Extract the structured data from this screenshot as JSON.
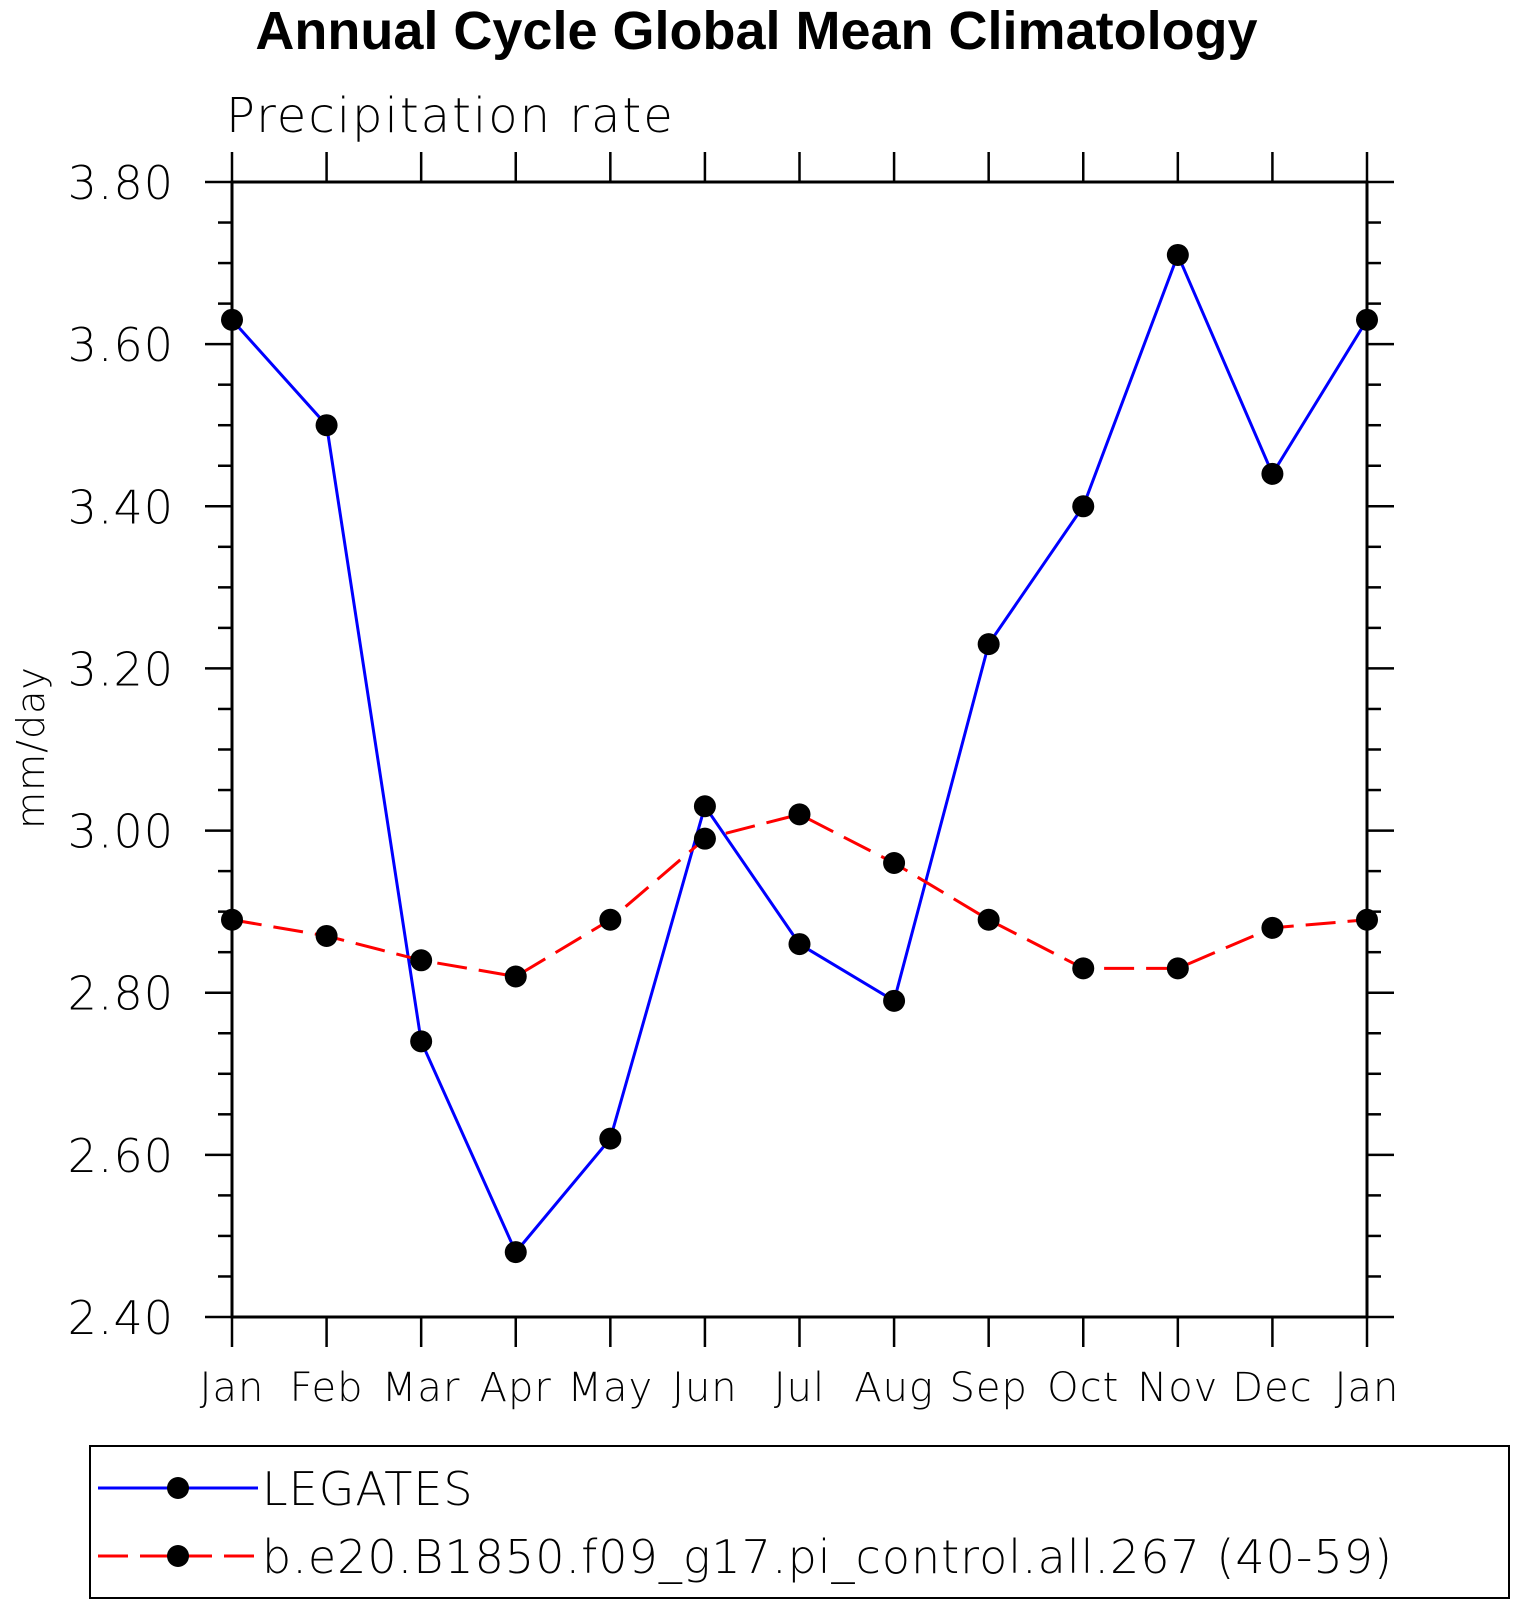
{
  "chart_data": {
    "type": "line",
    "title": "Annual Cycle Global Mean Climatology",
    "subtitle": "Precipitation rate",
    "xlabel": "",
    "ylabel": "mm/day",
    "ylim": [
      2.4,
      3.8
    ],
    "yticks": [
      "2.40",
      "2.60",
      "2.80",
      "3.00",
      "3.20",
      "3.40",
      "3.60",
      "3.80"
    ],
    "categories": [
      "Jan",
      "Feb",
      "Mar",
      "Apr",
      "May",
      "Jun",
      "Jul",
      "Aug",
      "Sep",
      "Oct",
      "Nov",
      "Dec",
      "Jan"
    ],
    "series": [
      {
        "name": "LEGATES",
        "color": "#0000ff",
        "dash": "solid",
        "marker": "filled-circle",
        "values": [
          3.63,
          3.5,
          2.74,
          2.48,
          2.62,
          3.03,
          2.86,
          2.79,
          3.23,
          3.4,
          3.71,
          3.44,
          3.63
        ]
      },
      {
        "name": "b.e20.B1850.f09_g17.pi_control.all.267 (40-59)",
        "color": "#ff0000",
        "dash": "dashed",
        "marker": "filled-circle",
        "values": [
          2.89,
          2.87,
          2.84,
          2.82,
          2.89,
          2.99,
          3.02,
          2.96,
          2.89,
          2.83,
          2.83,
          2.88,
          2.89
        ]
      }
    ],
    "legend": "bottom",
    "grid": false
  }
}
